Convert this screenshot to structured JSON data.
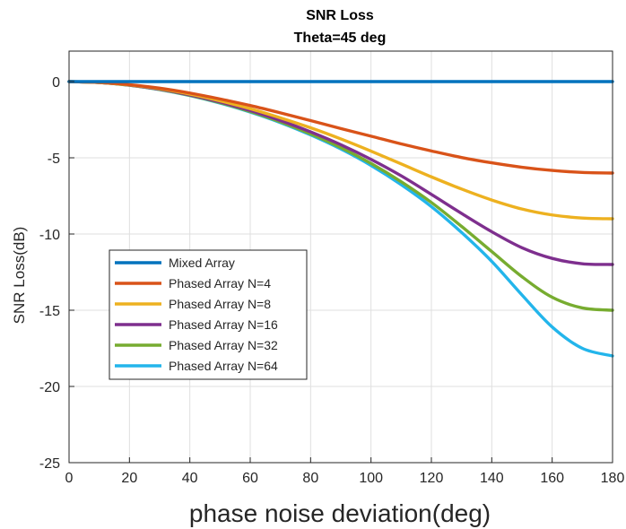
{
  "chart_data": {
    "type": "line",
    "title": "SNR Loss",
    "subtitle": "Theta=45 deg",
    "xlabel": "phase noise deviation(deg)",
    "ylabel": "SNR Loss(dB)",
    "xlim": [
      0,
      180
    ],
    "ylim": [
      -25,
      2
    ],
    "xticks": [
      0,
      20,
      40,
      60,
      80,
      100,
      120,
      140,
      160,
      180
    ],
    "yticks": [
      0,
      -5,
      -10,
      -15,
      -20,
      -25
    ],
    "grid": true,
    "legend_position": "middle-left",
    "x": [
      0,
      10,
      20,
      30,
      40,
      50,
      60,
      70,
      80,
      90,
      100,
      110,
      120,
      130,
      140,
      150,
      160,
      170,
      180
    ],
    "series": [
      {
        "name": "Mixed Array",
        "color": "#0072bd",
        "values": [
          0,
          0,
          0,
          0,
          0,
          0,
          0,
          0,
          0,
          0,
          0,
          0,
          0,
          0,
          0,
          0,
          0,
          0,
          0
        ]
      },
      {
        "name": "Phased Array N=4",
        "color": "#d95319",
        "values": [
          0,
          -0.05,
          -0.2,
          -0.43,
          -0.75,
          -1.14,
          -1.57,
          -2.05,
          -2.56,
          -3.08,
          -3.58,
          -4.09,
          -4.55,
          -4.98,
          -5.33,
          -5.62,
          -5.83,
          -5.96,
          -6.0
        ]
      },
      {
        "name": "Phased Array N=8",
        "color": "#edb120",
        "values": [
          0,
          -0.06,
          -0.22,
          -0.47,
          -0.82,
          -1.26,
          -1.78,
          -2.38,
          -3.03,
          -3.76,
          -4.56,
          -5.4,
          -6.25,
          -7.05,
          -7.77,
          -8.36,
          -8.75,
          -8.95,
          -9.0
        ]
      },
      {
        "name": "Phased Array N=16",
        "color": "#7e2f8e",
        "values": [
          0,
          -0.06,
          -0.23,
          -0.5,
          -0.87,
          -1.34,
          -1.9,
          -2.55,
          -3.3,
          -4.14,
          -5.1,
          -6.18,
          -7.4,
          -8.65,
          -9.85,
          -10.9,
          -11.6,
          -11.95,
          -12.0
        ]
      },
      {
        "name": "Phased Array N=32",
        "color": "#77ac30",
        "values": [
          0,
          -0.06,
          -0.24,
          -0.52,
          -0.9,
          -1.38,
          -1.96,
          -2.64,
          -3.43,
          -4.33,
          -5.37,
          -6.57,
          -7.93,
          -9.5,
          -11.15,
          -12.8,
          -14.15,
          -14.85,
          -15.0
        ]
      },
      {
        "name": "Phased Array N=64",
        "color": "#23b5eb",
        "values": [
          0,
          -0.06,
          -0.24,
          -0.53,
          -0.92,
          -1.41,
          -2.0,
          -2.69,
          -3.5,
          -4.42,
          -5.5,
          -6.76,
          -8.2,
          -9.9,
          -11.8,
          -14.0,
          -16.1,
          -17.5,
          -18.0
        ]
      }
    ]
  }
}
